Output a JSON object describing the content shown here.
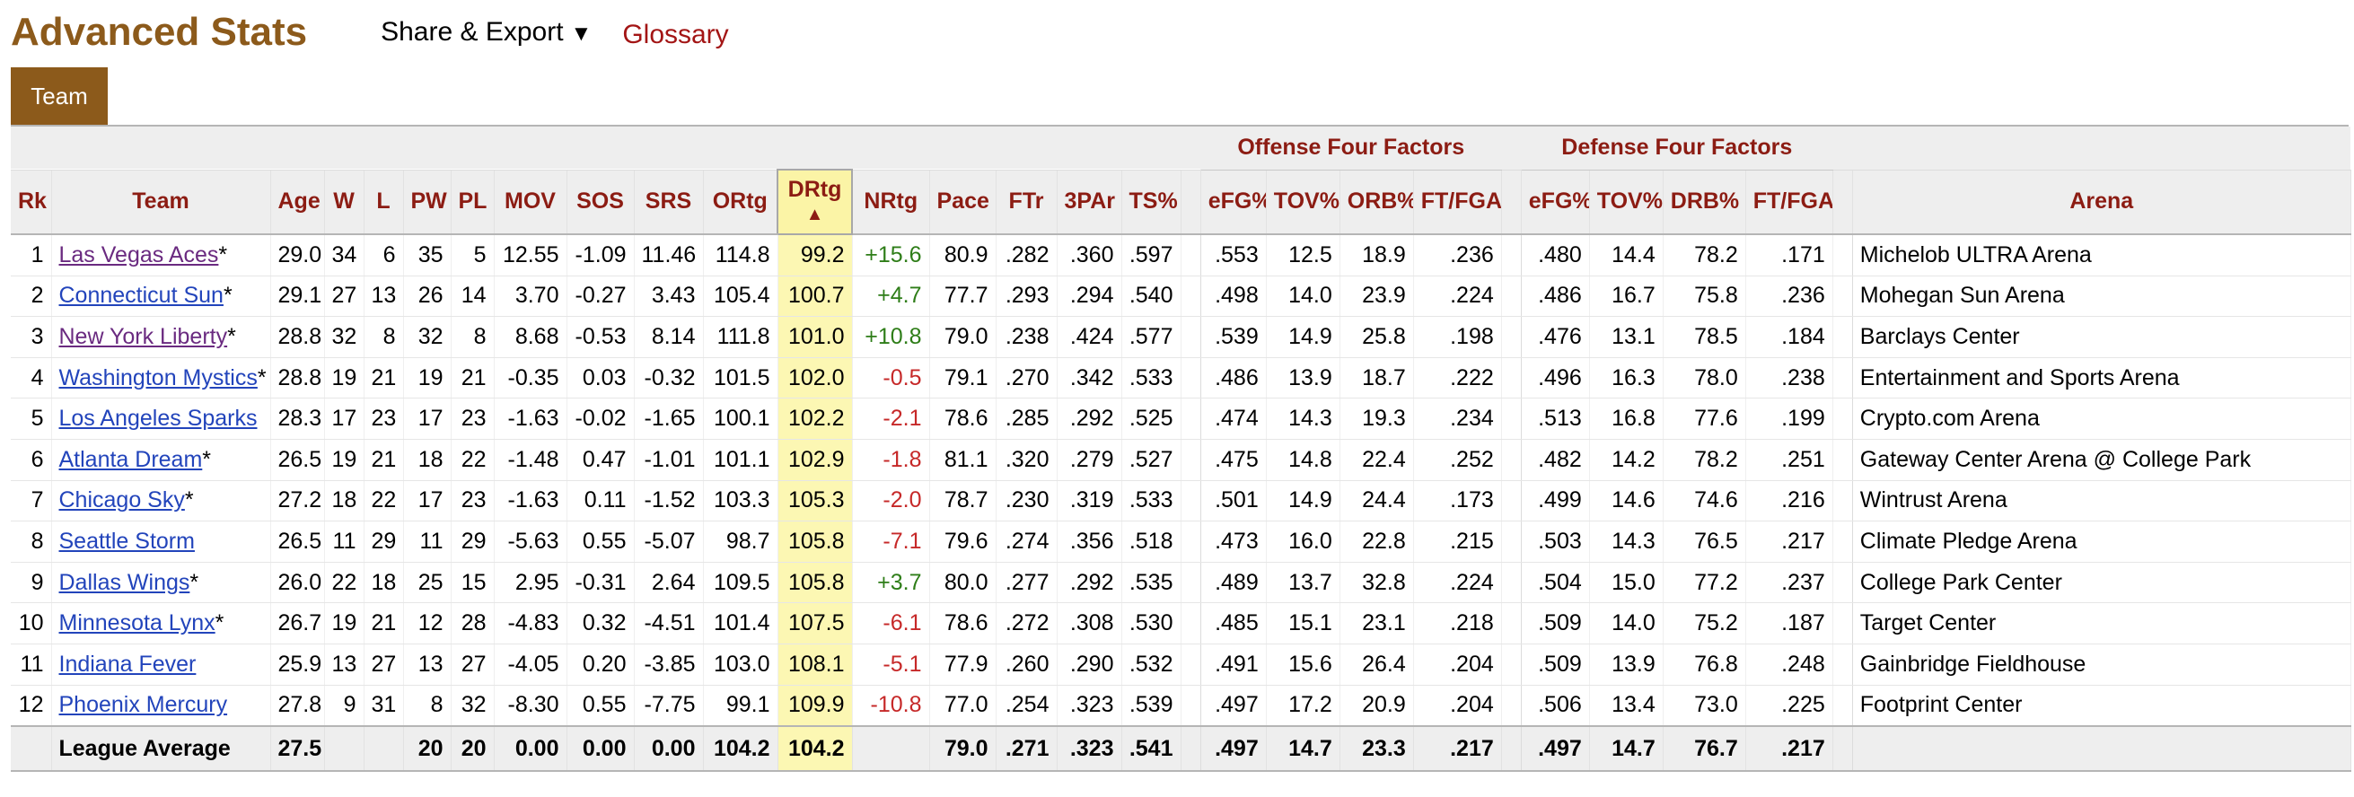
{
  "header": {
    "title": "Advanced Stats",
    "share_label": "Share & Export",
    "share_caret": "▼",
    "glossary_label": "Glossary"
  },
  "tabs": [
    {
      "label": "Team"
    }
  ],
  "groups": {
    "offense": "Offense Four Factors",
    "defense": "Defense Four Factors"
  },
  "columns": {
    "rk": "Rk",
    "team": "Team",
    "age": "Age",
    "w": "W",
    "l": "L",
    "pw": "PW",
    "pl": "PL",
    "mov": "MOV",
    "sos": "SOS",
    "srs": "SRS",
    "ortg": "ORtg",
    "drtg": "DRtg",
    "drtg_sort": "▲",
    "nrtg": "NRtg",
    "pace": "Pace",
    "ftr": "FTr",
    "tpar": "3PAr",
    "ts": "TS%",
    "o_efg": "eFG%",
    "o_tov": "TOV%",
    "o_orb": "ORB%",
    "o_ftfga": "FT/FGA",
    "d_efg": "eFG%",
    "d_tov": "TOV%",
    "d_drb": "DRB%",
    "d_ftfga": "FT/FGA",
    "arena": "Arena"
  },
  "rows": [
    {
      "rk": "1",
      "team": "Las Vegas Aces",
      "star": "*",
      "age": "29.0",
      "w": "34",
      "l": "6",
      "pw": "35",
      "pl": "5",
      "mov": "12.55",
      "sos": "-1.09",
      "srs": "11.46",
      "ortg": "114.8",
      "drtg": "99.2",
      "nrtg": "+15.6",
      "pace": "80.9",
      "ftr": ".282",
      "tpar": ".360",
      "ts": ".597",
      "o_efg": ".553",
      "o_tov": "12.5",
      "o_orb": "18.9",
      "o_ftfga": ".236",
      "d_efg": ".480",
      "d_tov": "14.4",
      "d_drb": "78.2",
      "d_ftfga": ".171",
      "arena": "Michelob ULTRA Arena"
    },
    {
      "rk": "2",
      "team": "Connecticut Sun",
      "star": "*",
      "age": "29.1",
      "w": "27",
      "l": "13",
      "pw": "26",
      "pl": "14",
      "mov": "3.70",
      "sos": "-0.27",
      "srs": "3.43",
      "ortg": "105.4",
      "drtg": "100.7",
      "nrtg": "+4.7",
      "pace": "77.7",
      "ftr": ".293",
      "tpar": ".294",
      "ts": ".540",
      "o_efg": ".498",
      "o_tov": "14.0",
      "o_orb": "23.9",
      "o_ftfga": ".224",
      "d_efg": ".486",
      "d_tov": "16.7",
      "d_drb": "75.8",
      "d_ftfga": ".236",
      "arena": "Mohegan Sun Arena"
    },
    {
      "rk": "3",
      "team": "New York Liberty",
      "star": "*",
      "age": "28.8",
      "w": "32",
      "l": "8",
      "pw": "32",
      "pl": "8",
      "mov": "8.68",
      "sos": "-0.53",
      "srs": "8.14",
      "ortg": "111.8",
      "drtg": "101.0",
      "nrtg": "+10.8",
      "pace": "79.0",
      "ftr": ".238",
      "tpar": ".424",
      "ts": ".577",
      "o_efg": ".539",
      "o_tov": "14.9",
      "o_orb": "25.8",
      "o_ftfga": ".198",
      "d_efg": ".476",
      "d_tov": "13.1",
      "d_drb": "78.5",
      "d_ftfga": ".184",
      "arena": "Barclays Center"
    },
    {
      "rk": "4",
      "team": "Washington Mystics",
      "star": "*",
      "age": "28.8",
      "w": "19",
      "l": "21",
      "pw": "19",
      "pl": "21",
      "mov": "-0.35",
      "sos": "0.03",
      "srs": "-0.32",
      "ortg": "101.5",
      "drtg": "102.0",
      "nrtg": "-0.5",
      "pace": "79.1",
      "ftr": ".270",
      "tpar": ".342",
      "ts": ".533",
      "o_efg": ".486",
      "o_tov": "13.9",
      "o_orb": "18.7",
      "o_ftfga": ".222",
      "d_efg": ".496",
      "d_tov": "16.3",
      "d_drb": "78.0",
      "d_ftfga": ".238",
      "arena": "Entertainment and Sports Arena"
    },
    {
      "rk": "5",
      "team": "Los Angeles Sparks",
      "star": "",
      "age": "28.3",
      "w": "17",
      "l": "23",
      "pw": "17",
      "pl": "23",
      "mov": "-1.63",
      "sos": "-0.02",
      "srs": "-1.65",
      "ortg": "100.1",
      "drtg": "102.2",
      "nrtg": "-2.1",
      "pace": "78.6",
      "ftr": ".285",
      "tpar": ".292",
      "ts": ".525",
      "o_efg": ".474",
      "o_tov": "14.3",
      "o_orb": "19.3",
      "o_ftfga": ".234",
      "d_efg": ".513",
      "d_tov": "16.8",
      "d_drb": "77.6",
      "d_ftfga": ".199",
      "arena": "Crypto.com Arena"
    },
    {
      "rk": "6",
      "team": "Atlanta Dream",
      "star": "*",
      "age": "26.5",
      "w": "19",
      "l": "21",
      "pw": "18",
      "pl": "22",
      "mov": "-1.48",
      "sos": "0.47",
      "srs": "-1.01",
      "ortg": "101.1",
      "drtg": "102.9",
      "nrtg": "-1.8",
      "pace": "81.1",
      "ftr": ".320",
      "tpar": ".279",
      "ts": ".527",
      "o_efg": ".475",
      "o_tov": "14.8",
      "o_orb": "22.4",
      "o_ftfga": ".252",
      "d_efg": ".482",
      "d_tov": "14.2",
      "d_drb": "78.2",
      "d_ftfga": ".251",
      "arena": "Gateway Center Arena @ College Park"
    },
    {
      "rk": "7",
      "team": "Chicago Sky",
      "star": "*",
      "age": "27.2",
      "w": "18",
      "l": "22",
      "pw": "17",
      "pl": "23",
      "mov": "-1.63",
      "sos": "0.11",
      "srs": "-1.52",
      "ortg": "103.3",
      "drtg": "105.3",
      "nrtg": "-2.0",
      "pace": "78.7",
      "ftr": ".230",
      "tpar": ".319",
      "ts": ".533",
      "o_efg": ".501",
      "o_tov": "14.9",
      "o_orb": "24.4",
      "o_ftfga": ".173",
      "d_efg": ".499",
      "d_tov": "14.6",
      "d_drb": "74.6",
      "d_ftfga": ".216",
      "arena": "Wintrust Arena"
    },
    {
      "rk": "8",
      "team": "Seattle Storm",
      "star": "",
      "age": "26.5",
      "w": "11",
      "l": "29",
      "pw": "11",
      "pl": "29",
      "mov": "-5.63",
      "sos": "0.55",
      "srs": "-5.07",
      "ortg": "98.7",
      "drtg": "105.8",
      "nrtg": "-7.1",
      "pace": "79.6",
      "ftr": ".274",
      "tpar": ".356",
      "ts": ".518",
      "o_efg": ".473",
      "o_tov": "16.0",
      "o_orb": "22.8",
      "o_ftfga": ".215",
      "d_efg": ".503",
      "d_tov": "14.3",
      "d_drb": "76.5",
      "d_ftfga": ".217",
      "arena": "Climate Pledge Arena"
    },
    {
      "rk": "9",
      "team": "Dallas Wings",
      "star": "*",
      "age": "26.0",
      "w": "22",
      "l": "18",
      "pw": "25",
      "pl": "15",
      "mov": "2.95",
      "sos": "-0.31",
      "srs": "2.64",
      "ortg": "109.5",
      "drtg": "105.8",
      "nrtg": "+3.7",
      "pace": "80.0",
      "ftr": ".277",
      "tpar": ".292",
      "ts": ".535",
      "o_efg": ".489",
      "o_tov": "13.7",
      "o_orb": "32.8",
      "o_ftfga": ".224",
      "d_efg": ".504",
      "d_tov": "15.0",
      "d_drb": "77.2",
      "d_ftfga": ".237",
      "arena": "College Park Center"
    },
    {
      "rk": "10",
      "team": "Minnesota Lynx",
      "star": "*",
      "age": "26.7",
      "w": "19",
      "l": "21",
      "pw": "12",
      "pl": "28",
      "mov": "-4.83",
      "sos": "0.32",
      "srs": "-4.51",
      "ortg": "101.4",
      "drtg": "107.5",
      "nrtg": "-6.1",
      "pace": "78.6",
      "ftr": ".272",
      "tpar": ".308",
      "ts": ".530",
      "o_efg": ".485",
      "o_tov": "15.1",
      "o_orb": "23.1",
      "o_ftfga": ".218",
      "d_efg": ".509",
      "d_tov": "14.0",
      "d_drb": "75.2",
      "d_ftfga": ".187",
      "arena": "Target Center"
    },
    {
      "rk": "11",
      "team": "Indiana Fever",
      "star": "",
      "age": "25.9",
      "w": "13",
      "l": "27",
      "pw": "13",
      "pl": "27",
      "mov": "-4.05",
      "sos": "0.20",
      "srs": "-3.85",
      "ortg": "103.0",
      "drtg": "108.1",
      "nrtg": "-5.1",
      "pace": "77.9",
      "ftr": ".260",
      "tpar": ".290",
      "ts": ".532",
      "o_efg": ".491",
      "o_tov": "15.6",
      "o_orb": "26.4",
      "o_ftfga": ".204",
      "d_efg": ".509",
      "d_tov": "13.9",
      "d_drb": "76.8",
      "d_ftfga": ".248",
      "arena": "Gainbridge Fieldhouse"
    },
    {
      "rk": "12",
      "team": "Phoenix Mercury",
      "star": "",
      "age": "27.8",
      "w": "9",
      "l": "31",
      "pw": "8",
      "pl": "32",
      "mov": "-8.30",
      "sos": "0.55",
      "srs": "-7.75",
      "ortg": "99.1",
      "drtg": "109.9",
      "nrtg": "-10.8",
      "pace": "77.0",
      "ftr": ".254",
      "tpar": ".323",
      "ts": ".539",
      "o_efg": ".497",
      "o_tov": "17.2",
      "o_orb": "20.9",
      "o_ftfga": ".204",
      "d_efg": ".506",
      "d_tov": "13.4",
      "d_drb": "73.0",
      "d_ftfga": ".225",
      "arena": "Footprint Center"
    }
  ],
  "footer": {
    "label": "League Average",
    "age": "27.5",
    "pw": "20",
    "pl": "20",
    "mov": "0.00",
    "sos": "0.00",
    "srs": "0.00",
    "ortg": "104.2",
    "drtg": "104.2",
    "pace": "79.0",
    "ftr": ".271",
    "tpar": ".323",
    "ts": ".541",
    "o_efg": ".497",
    "o_tov": "14.7",
    "o_orb": "23.3",
    "o_ftfga": ".217",
    "d_efg": ".497",
    "d_tov": "14.7",
    "d_drb": "76.7",
    "d_ftfga": ".217"
  },
  "colors": {
    "title": "#8c5a1b",
    "tab_bg": "#8c5a1b",
    "header_text": "#8c1c13",
    "sorted_bg": "#fbf4a6",
    "positive": "#2e7d18",
    "negative": "#c62828",
    "link": "#2244bb",
    "visited_link": "#6a2a80"
  }
}
